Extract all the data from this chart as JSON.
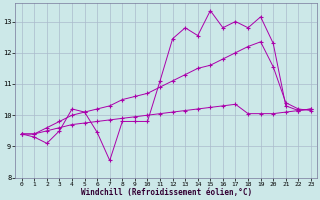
{
  "xlabel": "Windchill (Refroidissement éolien,°C)",
  "bg_color": "#cce8e8",
  "line_color": "#aa00aa",
  "grid_color": "#aabbcc",
  "xlim": [
    -0.5,
    23.5
  ],
  "ylim": [
    8.0,
    13.6
  ],
  "yticks": [
    8,
    9,
    10,
    11,
    12,
    13
  ],
  "xticks": [
    0,
    1,
    2,
    3,
    4,
    5,
    6,
    7,
    8,
    9,
    10,
    11,
    12,
    13,
    14,
    15,
    16,
    17,
    18,
    19,
    20,
    21,
    22,
    23
  ],
  "line1_x": [
    0,
    1,
    2,
    3,
    4,
    5,
    6,
    7,
    8,
    9,
    10,
    11,
    12,
    13,
    14,
    15,
    16,
    17,
    18,
    19,
    20,
    21,
    22,
    23
  ],
  "line1_y": [
    9.4,
    9.3,
    9.1,
    9.5,
    10.2,
    10.1,
    9.45,
    8.55,
    9.8,
    9.8,
    9.8,
    11.1,
    12.45,
    12.8,
    12.55,
    13.35,
    12.8,
    13.0,
    12.8,
    13.15,
    12.3,
    10.3,
    10.15,
    10.2
  ],
  "line2_x": [
    0,
    1,
    2,
    3,
    4,
    5,
    6,
    7,
    8,
    9,
    10,
    11,
    12,
    13,
    14,
    15,
    16,
    17,
    18,
    19,
    20,
    21,
    22,
    23
  ],
  "line2_y": [
    9.4,
    9.4,
    9.6,
    9.8,
    10.0,
    10.1,
    10.2,
    10.3,
    10.5,
    10.6,
    10.7,
    10.9,
    11.1,
    11.3,
    11.5,
    11.6,
    11.8,
    12.0,
    12.2,
    12.35,
    11.55,
    10.4,
    10.2,
    10.15
  ],
  "line3_x": [
    0,
    1,
    2,
    3,
    4,
    5,
    6,
    7,
    8,
    9,
    10,
    11,
    12,
    13,
    14,
    15,
    16,
    17,
    18,
    19,
    20,
    21,
    22,
    23
  ],
  "line3_y": [
    9.4,
    9.4,
    9.5,
    9.6,
    9.7,
    9.75,
    9.8,
    9.85,
    9.9,
    9.95,
    10.0,
    10.05,
    10.1,
    10.15,
    10.2,
    10.25,
    10.3,
    10.35,
    10.05,
    10.05,
    10.05,
    10.1,
    10.15,
    10.2
  ]
}
